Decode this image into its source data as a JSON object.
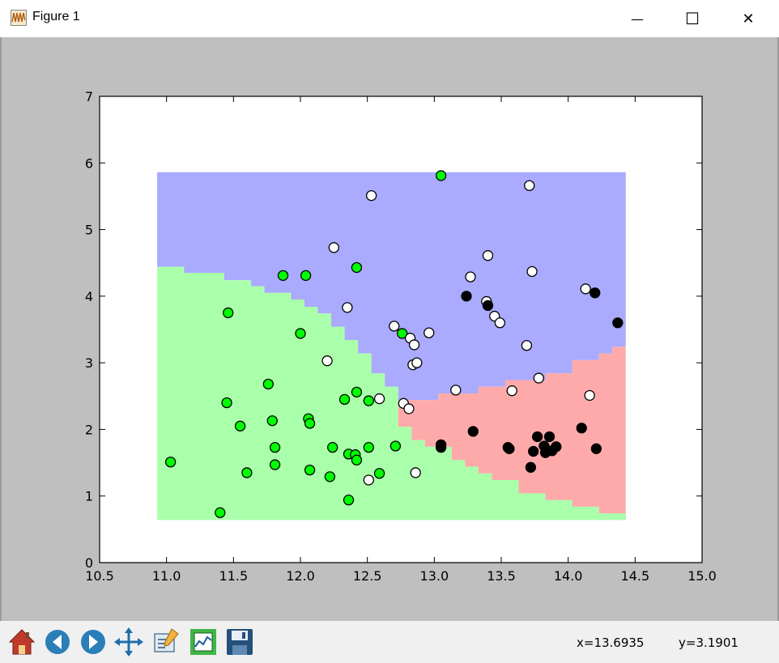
{
  "window": {
    "title": "Figure 1",
    "minimize_glyph": "—",
    "maximize_glyph": "☐",
    "close_glyph": "✕"
  },
  "toolbar": {
    "buttons": [
      {
        "name": "home-button",
        "icon": "home-icon"
      },
      {
        "name": "back-button",
        "icon": "back-arrow-icon"
      },
      {
        "name": "forward-button",
        "icon": "forward-arrow-icon"
      },
      {
        "name": "pan-button",
        "icon": "pan-arrows-icon"
      },
      {
        "name": "zoom-button",
        "icon": "zoom-rect-icon"
      },
      {
        "name": "subplots-button",
        "icon": "subplots-icon"
      },
      {
        "name": "save-button",
        "icon": "save-disk-icon"
      }
    ],
    "x_readout": "x=13.6935",
    "y_readout": "y=3.1901"
  },
  "chart_data": {
    "type": "scatter",
    "title": "",
    "xlabel": "",
    "ylabel": "",
    "xlim": [
      10.5,
      15.0
    ],
    "ylim": [
      0,
      7
    ],
    "xticks": [
      "10.5",
      "11.0",
      "11.5",
      "12.0",
      "12.5",
      "13.0",
      "13.5",
      "14.0",
      "14.5",
      "15.0"
    ],
    "yticks": [
      "0",
      "1",
      "2",
      "3",
      "4",
      "5",
      "6",
      "7"
    ],
    "grid": false,
    "colors": {
      "region_green": "#aaffaa",
      "region_blue": "#aaaaff",
      "region_red": "#ffaaaa",
      "class_green": "#00ff00",
      "class_white": "#ffffff",
      "class_black": "#000000"
    },
    "decision_regions": {
      "x_range": [
        10.93,
        14.43
      ],
      "y_range": [
        0.64,
        5.86
      ],
      "green_blue_boundary": [
        [
          10.93,
          4.44
        ],
        [
          11.13,
          4.44
        ],
        [
          11.13,
          4.35
        ],
        [
          11.43,
          4.35
        ],
        [
          11.43,
          4.24
        ],
        [
          11.63,
          4.24
        ],
        [
          11.63,
          4.15
        ],
        [
          11.73,
          4.15
        ],
        [
          11.73,
          4.05
        ],
        [
          11.93,
          4.05
        ],
        [
          11.93,
          3.95
        ],
        [
          12.03,
          3.95
        ],
        [
          12.03,
          3.84
        ],
        [
          12.13,
          3.84
        ],
        [
          12.13,
          3.74
        ],
        [
          12.23,
          3.74
        ],
        [
          12.23,
          3.54
        ],
        [
          12.33,
          3.54
        ],
        [
          12.33,
          3.34
        ],
        [
          12.43,
          3.34
        ],
        [
          12.43,
          3.14
        ],
        [
          12.53,
          3.14
        ],
        [
          12.53,
          2.84
        ],
        [
          12.63,
          2.84
        ],
        [
          12.63,
          2.64
        ],
        [
          12.73,
          2.64
        ],
        [
          12.73,
          2.44
        ],
        [
          12.83,
          2.44
        ]
      ],
      "blue_red_boundary": [
        [
          12.83,
          2.44
        ],
        [
          13.03,
          2.44
        ],
        [
          13.03,
          2.54
        ],
        [
          13.33,
          2.54
        ],
        [
          13.33,
          2.64
        ],
        [
          13.53,
          2.64
        ],
        [
          13.53,
          2.74
        ],
        [
          13.83,
          2.74
        ],
        [
          13.83,
          2.84
        ],
        [
          14.03,
          2.84
        ],
        [
          14.03,
          3.04
        ],
        [
          14.23,
          3.04
        ],
        [
          14.23,
          3.14
        ],
        [
          14.33,
          3.14
        ],
        [
          14.33,
          3.24
        ],
        [
          14.43,
          3.24
        ]
      ],
      "green_red_boundary": [
        [
          12.73,
          2.44
        ],
        [
          12.73,
          2.04
        ],
        [
          12.83,
          2.04
        ],
        [
          12.83,
          1.84
        ],
        [
          12.93,
          1.84
        ],
        [
          12.93,
          1.74
        ],
        [
          13.13,
          1.74
        ],
        [
          13.13,
          1.54
        ],
        [
          13.23,
          1.54
        ],
        [
          13.23,
          1.44
        ],
        [
          13.33,
          1.44
        ],
        [
          13.33,
          1.34
        ],
        [
          13.43,
          1.34
        ],
        [
          13.43,
          1.24
        ],
        [
          13.63,
          1.24
        ],
        [
          13.63,
          1.04
        ],
        [
          13.83,
          1.04
        ],
        [
          13.83,
          0.94
        ],
        [
          14.03,
          0.94
        ],
        [
          14.03,
          0.84
        ],
        [
          14.23,
          0.84
        ],
        [
          14.23,
          0.74
        ],
        [
          14.33,
          0.74
        ],
        [
          14.33,
          0.64
        ]
      ]
    },
    "series": [
      {
        "color": "#00ff00",
        "points": [
          [
            11.03,
            1.51
          ],
          [
            11.4,
            0.75
          ],
          [
            11.45,
            2.4
          ],
          [
            11.46,
            3.75
          ],
          [
            11.55,
            2.05
          ],
          [
            11.6,
            1.35
          ],
          [
            11.76,
            2.68
          ],
          [
            11.79,
            2.13
          ],
          [
            11.81,
            1.73
          ],
          [
            11.81,
            1.47
          ],
          [
            11.87,
            4.31
          ],
          [
            12.0,
            3.44
          ],
          [
            12.04,
            4.31
          ],
          [
            12.06,
            2.16
          ],
          [
            12.07,
            2.09
          ],
          [
            12.07,
            1.39
          ],
          [
            12.22,
            1.29
          ],
          [
            12.24,
            1.73
          ],
          [
            12.33,
            2.45
          ],
          [
            12.36,
            1.63
          ],
          [
            12.36,
            0.94
          ],
          [
            12.41,
            1.62
          ],
          [
            12.42,
            1.54
          ],
          [
            12.42,
            2.56
          ],
          [
            12.42,
            4.43
          ],
          [
            12.51,
            1.73
          ],
          [
            12.51,
            2.43
          ],
          [
            12.59,
            1.34
          ],
          [
            12.71,
            1.75
          ],
          [
            12.76,
            3.44
          ],
          [
            13.05,
            5.81
          ]
        ]
      },
      {
        "color": "#ffffff",
        "points": [
          [
            12.2,
            3.03
          ],
          [
            12.25,
            4.73
          ],
          [
            12.35,
            3.83
          ],
          [
            12.51,
            1.24
          ],
          [
            12.53,
            5.51
          ],
          [
            12.59,
            2.46
          ],
          [
            12.7,
            3.55
          ],
          [
            12.77,
            2.39
          ],
          [
            12.81,
            2.31
          ],
          [
            12.82,
            3.37
          ],
          [
            12.84,
            2.97
          ],
          [
            12.85,
            3.27
          ],
          [
            12.86,
            1.35
          ],
          [
            12.87,
            3.0
          ],
          [
            12.96,
            3.45
          ],
          [
            13.16,
            2.59
          ],
          [
            13.27,
            4.29
          ],
          [
            13.39,
            3.92
          ],
          [
            13.4,
            4.61
          ],
          [
            13.45,
            3.7
          ],
          [
            13.49,
            3.6
          ],
          [
            13.58,
            2.58
          ],
          [
            13.69,
            3.26
          ],
          [
            13.71,
            5.66
          ],
          [
            13.73,
            4.37
          ],
          [
            13.78,
            2.77
          ],
          [
            14.13,
            4.11
          ],
          [
            14.16,
            2.51
          ]
        ]
      },
      {
        "color": "#000000",
        "points": [
          [
            13.05,
            1.77
          ],
          [
            13.05,
            1.73
          ],
          [
            13.24,
            4.0
          ],
          [
            13.29,
            1.97
          ],
          [
            13.4,
            3.86
          ],
          [
            13.55,
            1.73
          ],
          [
            13.56,
            1.71
          ],
          [
            13.72,
            1.43
          ],
          [
            13.74,
            1.67
          ],
          [
            13.77,
            1.89
          ],
          [
            13.82,
            1.75
          ],
          [
            13.83,
            1.65
          ],
          [
            13.86,
            1.89
          ],
          [
            13.88,
            1.68
          ],
          [
            13.91,
            1.74
          ],
          [
            14.1,
            2.02
          ],
          [
            14.2,
            4.05
          ],
          [
            14.21,
            1.71
          ],
          [
            14.37,
            3.6
          ]
        ]
      }
    ]
  }
}
